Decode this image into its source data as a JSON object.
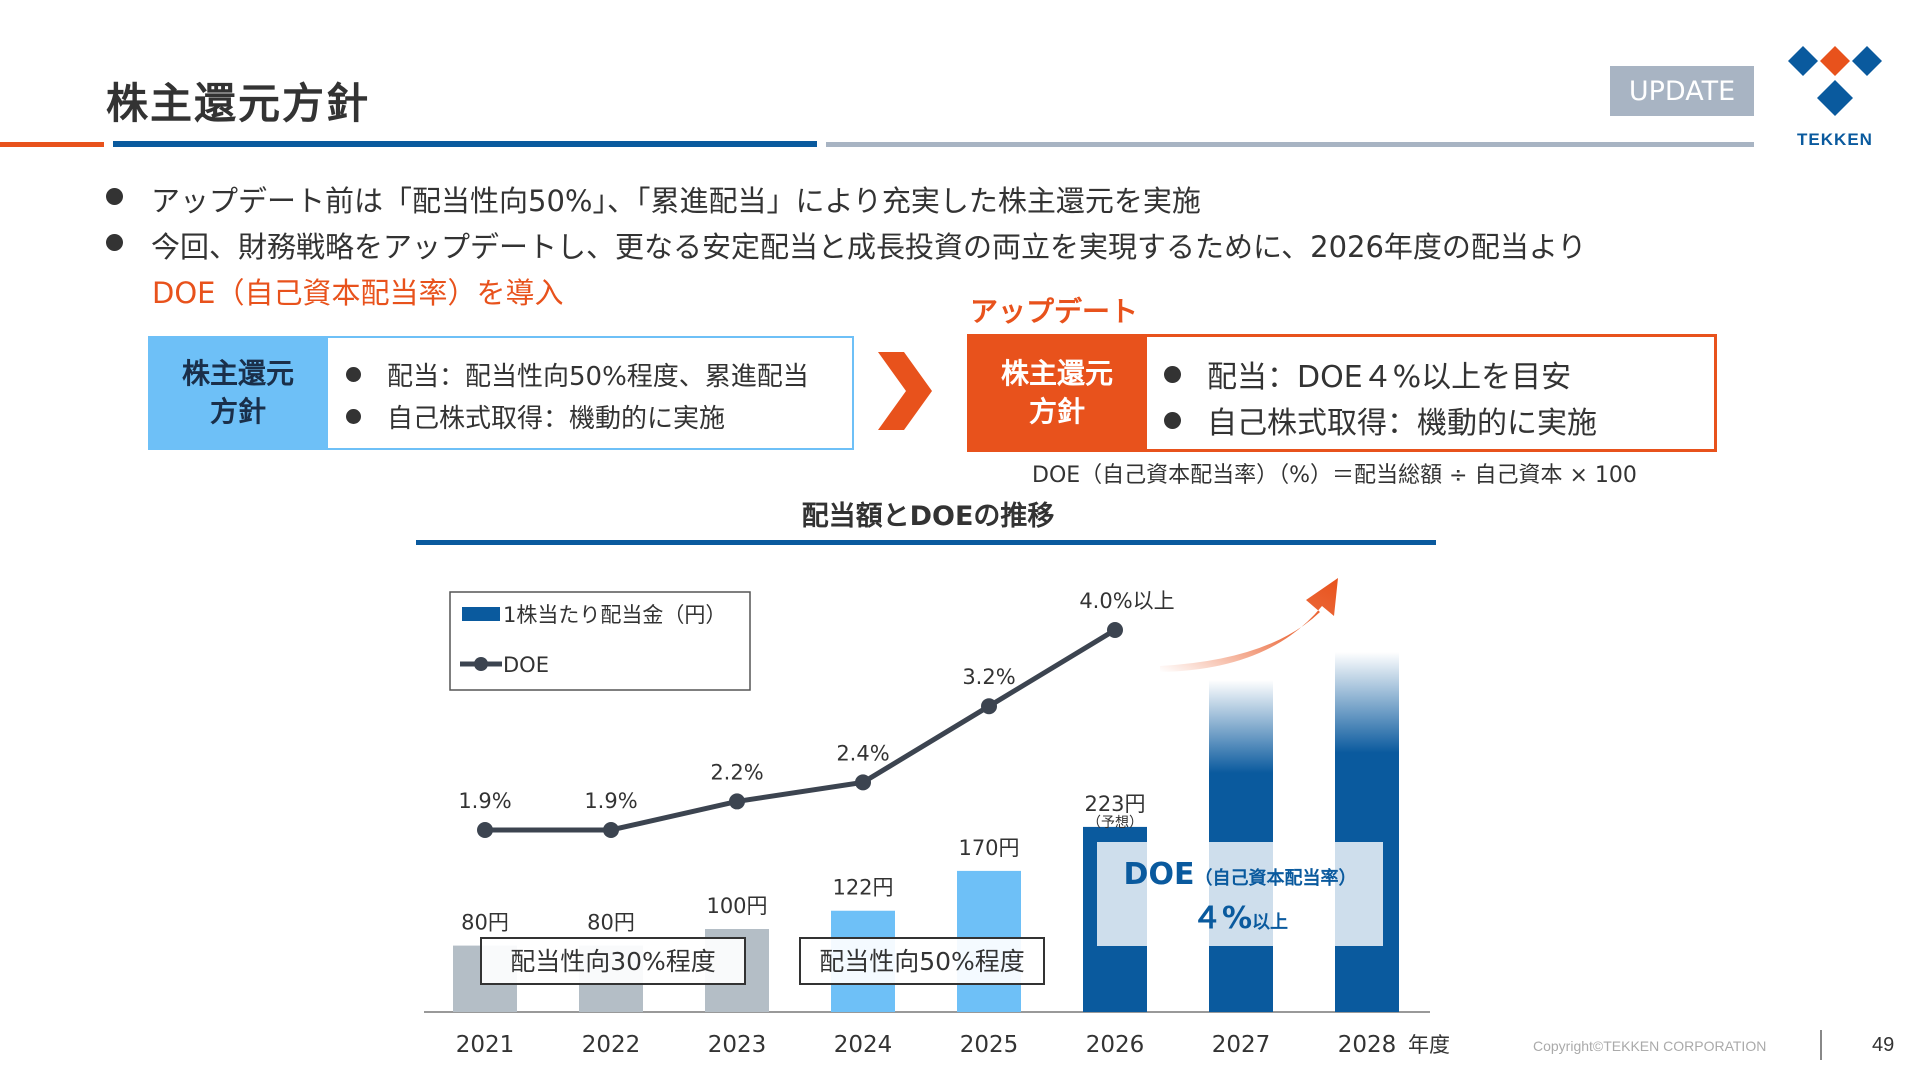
{
  "header": {
    "title": "株主還元方針",
    "badge": "UPDATE",
    "brand": "TEKKEN"
  },
  "bullets": [
    "アップデート前は「配当性向50%」、「累進配当」により充実した株主還元を実施",
    "今回、財務戦略をアップデートし、更なる安定配当と成長投資の両立を実現するために、2026年度の配当より"
  ],
  "highlight": "DOE（自己資本配当率）を導入",
  "policy_before": {
    "head": [
      "株主還元",
      "方針"
    ],
    "items": [
      "配当：配当性向50%程度、累進配当",
      "自己株式取得：機動的に実施"
    ]
  },
  "policy_after": {
    "label": "アップデート",
    "head": [
      "株主還元",
      "方針"
    ],
    "items": [
      "配当：DOE４%以上を目安",
      "自己株式取得：機動的に実施"
    ]
  },
  "formula": "DOE（自己資本配当率）（%）＝配当総額 ÷ 自己資本 × 100",
  "chart_title": "配当額とDOEの推移",
  "colors": {
    "navy": "#0a5a9e",
    "orange": "#e8521c",
    "light_blue": "#6ec0f7",
    "gray_bar": "#b4bec6",
    "text": "#333333"
  },
  "chart_data": {
    "type": "bar",
    "categories": [
      "2021",
      "2022",
      "2023",
      "2024",
      "2025",
      "2026",
      "2027",
      "2028"
    ],
    "x_unit_label": "年度",
    "series": [
      {
        "name": "1株当たり配当金（円）",
        "type": "bar",
        "values": [
          80,
          80,
          100,
          122,
          170,
          223,
          null,
          null
        ],
        "labels": [
          "80円",
          "80円",
          "100円",
          "122円",
          "170円",
          "223円",
          "",
          ""
        ],
        "sublabels": [
          "",
          "",
          "",
          "",
          "",
          "（予想）",
          "",
          ""
        ]
      },
      {
        "name": "DOE",
        "type": "line",
        "values": [
          1.9,
          1.9,
          2.2,
          2.4,
          3.2,
          4.0,
          null,
          null
        ],
        "labels": [
          "1.9%",
          "1.9%",
          "2.2%",
          "2.4%",
          "3.2%",
          "4.0%以上",
          "",
          ""
        ]
      }
    ],
    "legend": [
      "1株当たり配当金（円）",
      "DOE"
    ],
    "legend_position": "top-left",
    "annotations": {
      "payout30": "配当性向30%程度",
      "payout50": "配当性向50%程度",
      "doe_box_main": "DOE",
      "doe_box_sub": "（自己資本配当率）",
      "doe_box_value": "４%",
      "doe_box_suffix": "以上"
    }
  },
  "footer": {
    "copyright": "Copyright©TEKKEN CORPORATION",
    "page": "49"
  }
}
